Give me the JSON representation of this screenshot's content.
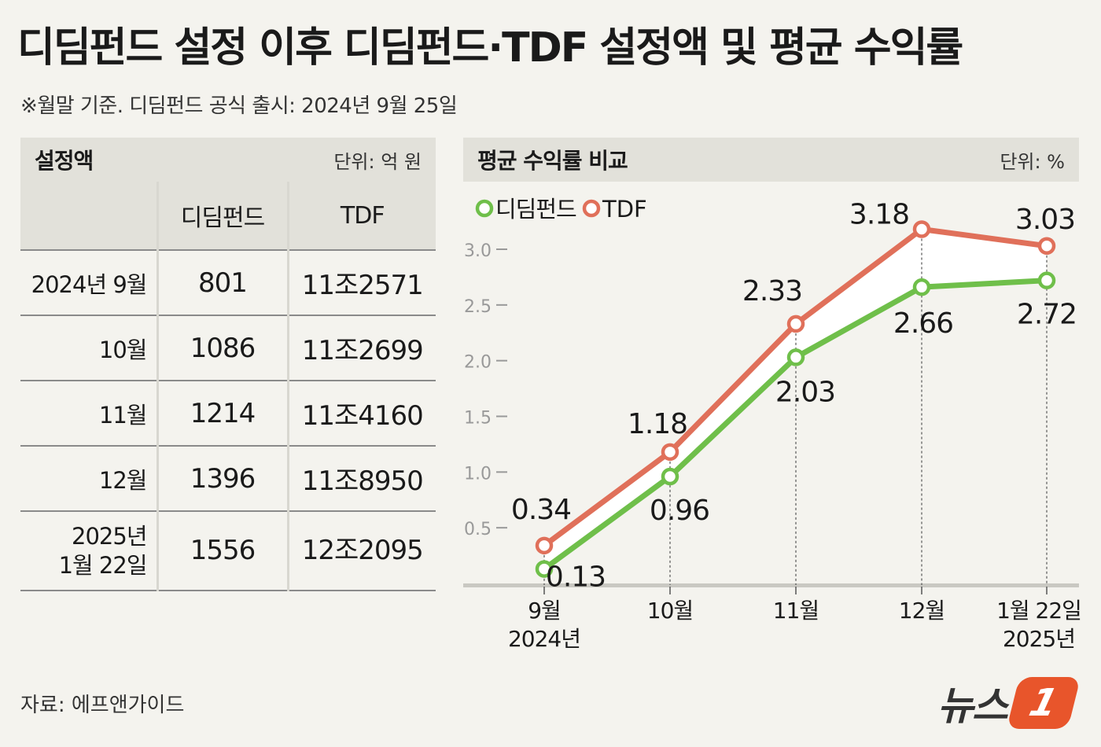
{
  "title": "디딤펀드 설정 이후 디딤펀드·TDF 설정액 및 평균 수익률",
  "subtitle": "※월말 기준.  디딤펀드 공식 출시: 2024년 9월 25일",
  "table": {
    "title": "설정액",
    "unit": "단위: 억 원",
    "headers": [
      "",
      "디딤펀드",
      "TDF"
    ],
    "rows": [
      {
        "label": "2024년 9월",
        "didim": "801",
        "tdf": "11조2571"
      },
      {
        "label": "10월",
        "didim": "1086",
        "tdf": "11조2699"
      },
      {
        "label": "11월",
        "didim": "1214",
        "tdf": "11조4160"
      },
      {
        "label": "12월",
        "didim": "1396",
        "tdf": "11조8950"
      },
      {
        "label": "2025년\n1월 22일",
        "didim": "1556",
        "tdf": "12조2095"
      }
    ]
  },
  "chart_header": {
    "title": "평균 수익률 비교",
    "unit": "단위: %"
  },
  "chart_data": {
    "type": "line",
    "title": "평균 수익률 비교",
    "categories": [
      "9월\n2024년",
      "10월",
      "11월",
      "12월",
      "1월 22일\n2025년"
    ],
    "series": [
      {
        "name": "디딤펀드",
        "color": "#6fbf4a",
        "values": [
          0.13,
          0.96,
          2.03,
          2.66,
          2.72
        ],
        "labels": [
          "0.13",
          "0.96",
          "2.03",
          "2.66",
          "2.72"
        ]
      },
      {
        "name": "TDF",
        "color": "#e0705a",
        "values": [
          0.34,
          1.18,
          2.33,
          3.18,
          3.03
        ],
        "labels": [
          "0.34",
          "1.18",
          "2.33",
          "3.18",
          "3.03"
        ]
      }
    ],
    "yticks": [
      "0.5",
      "1.0",
      "1.5",
      "2.0",
      "2.5",
      "3.0"
    ],
    "ytick_values": [
      0.5,
      1.0,
      1.5,
      2.0,
      2.5,
      3.0
    ],
    "ylim": [
      0,
      3.0
    ],
    "ylabel": "단위: %",
    "legend": "top-left"
  },
  "source": "자료: 에프앤가이드",
  "logo": {
    "text": "뉴스",
    "mark": "1"
  },
  "colors": {
    "didim": "#6fbf4a",
    "tdf": "#e0705a",
    "header_bg": "#e2e1da",
    "logo": "#e8552b"
  }
}
